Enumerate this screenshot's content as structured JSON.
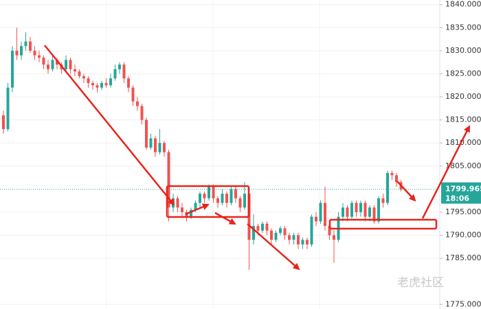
{
  "chart_data": {
    "type": "candlestick",
    "open": [
      1816,
      1813,
      1822,
      1830,
      1829,
      1831,
      1832,
      1830,
      1829,
      1828.5,
      1827,
      1826,
      1828,
      1827,
      1826,
      1828,
      1826,
      1825.5,
      1824.5,
      1824,
      1823,
      1822.5,
      1822,
      1823,
      1822.5,
      1824,
      1826,
      1827,
      1824,
      1822,
      1819,
      1818,
      1815,
      1809,
      1811,
      1808,
      1810,
      1808,
      1796,
      1798,
      1796,
      1795,
      1794,
      1795.5,
      1797,
      1799,
      1798,
      1800.5,
      1798,
      1797,
      1799,
      1797,
      1800,
      1798,
      1796,
      1799,
      1789,
      1792,
      1791,
      1792.5,
      1791,
      1789,
      1790.5,
      1791.5,
      1790,
      1789,
      1790,
      1788,
      1789,
      1788,
      1794,
      1793,
      1797,
      1792,
      1790,
      1789,
      1794,
      1796,
      1794,
      1797,
      1795,
      1797,
      1794,
      1796,
      1793,
      1798,
      1797,
      1803.5,
      1803,
      1801.5
    ],
    "high": [
      1817,
      1823,
      1831,
      1835,
      1832,
      1834,
      1833,
      1831,
      1830,
      1829,
      1828,
      1829,
      1828.5,
      1827.5,
      1829,
      1828.5,
      1827,
      1826,
      1825,
      1824.5,
      1823.5,
      1823,
      1823.5,
      1824,
      1825,
      1827,
      1827.5,
      1827.5,
      1824.5,
      1822.5,
      1820,
      1818.5,
      1815.5,
      1812,
      1811.5,
      1813,
      1810.5,
      1808.5,
      1799,
      1798.5,
      1797,
      1795.5,
      1796,
      1797.5,
      1799.5,
      1799.5,
      1801,
      1801,
      1798.5,
      1800,
      1799.5,
      1800.5,
      1800.5,
      1798.5,
      1801.5,
      1799.5,
      1794.5,
      1792.5,
      1793,
      1793,
      1791.5,
      1791,
      1792,
      1792,
      1790.5,
      1790.5,
      1790.5,
      1789.5,
      1789.5,
      1794.5,
      1795,
      1797.5,
      1800.5,
      1792.5,
      1791,
      1795,
      1797,
      1796.5,
      1797.5,
      1797.5,
      1797.5,
      1797.5,
      1796.5,
      1796.5,
      1798.5,
      1799,
      1804,
      1804,
      1803.5,
      1802
    ],
    "low": [
      1812,
      1812.5,
      1821,
      1828,
      1828,
      1830,
      1829.5,
      1828,
      1827.5,
      1826,
      1825,
      1825.5,
      1826,
      1825,
      1825.5,
      1825,
      1824.5,
      1824,
      1823,
      1822,
      1821.5,
      1821,
      1821.5,
      1822,
      1822,
      1823.5,
      1825,
      1823,
      1821,
      1818,
      1817,
      1814,
      1808.5,
      1808.5,
      1807,
      1807.5,
      1807,
      1793,
      1795,
      1795,
      1794,
      1793,
      1793.5,
      1795,
      1796,
      1797,
      1797.5,
      1797,
      1796,
      1796.5,
      1796,
      1796.5,
      1797,
      1795,
      1795.5,
      1782.5,
      1788,
      1790,
      1790.5,
      1790,
      1788,
      1788.5,
      1790,
      1789,
      1788,
      1788,
      1787,
      1787,
      1787,
      1787.5,
      1792,
      1792.5,
      1791,
      1789,
      1784,
      1788.5,
      1793,
      1793,
      1793.5,
      1794,
      1794,
      1793,
      1793,
      1792.5,
      1792.5,
      1796,
      1796.5,
      1802,
      1800.5,
      1799.5
    ],
    "close": [
      1813,
      1822,
      1830,
      1829,
      1831,
      1832,
      1830,
      1829,
      1828.5,
      1827,
      1826,
      1828,
      1827,
      1826,
      1828,
      1826,
      1825.5,
      1824.5,
      1824,
      1823,
      1822.5,
      1822,
      1823,
      1822.5,
      1824,
      1826,
      1827,
      1824,
      1822,
      1819,
      1818,
      1815,
      1809,
      1811,
      1808,
      1810,
      1808,
      1796,
      1798,
      1796,
      1795,
      1794,
      1795.5,
      1797,
      1799,
      1798,
      1800.5,
      1798,
      1797,
      1799,
      1797,
      1800,
      1798,
      1796,
      1799,
      1789,
      1792,
      1791,
      1792.5,
      1791,
      1789,
      1790.5,
      1791.5,
      1790,
      1789,
      1790,
      1788,
      1789,
      1788,
      1794,
      1793,
      1797,
      1792,
      1790,
      1789,
      1794,
      1796,
      1794,
      1797,
      1795,
      1797,
      1794,
      1796,
      1793,
      1798,
      1797,
      1803.5,
      1803,
      1801.5,
      1799.965
    ],
    "up_color": "#26a69a",
    "down_color": "#ef5350",
    "ylim": [
      1774,
      1841
    ],
    "yticks": [
      {
        "value": 1840,
        "label": "1840.000"
      },
      {
        "value": 1835,
        "label": "1835.000"
      },
      {
        "value": 1830,
        "label": "1830.000"
      },
      {
        "value": 1825,
        "label": "1825.000"
      },
      {
        "value": 1820,
        "label": "1820.000"
      },
      {
        "value": 1815,
        "label": "1815.000"
      },
      {
        "value": 1810,
        "label": "1810.000"
      },
      {
        "value": 1805,
        "label": "1805.000"
      },
      {
        "value": 1795,
        "label": "1795.000"
      },
      {
        "value": 1790,
        "label": "1790.000"
      },
      {
        "value": 1785,
        "label": "1785.000"
      },
      {
        "value": 1775,
        "label": "1775.000"
      }
    ],
    "grid": true,
    "last_price": {
      "value": 1799.965,
      "label": "1799.965"
    },
    "last_time": "18:06"
  },
  "watermark": "老虎社区"
}
